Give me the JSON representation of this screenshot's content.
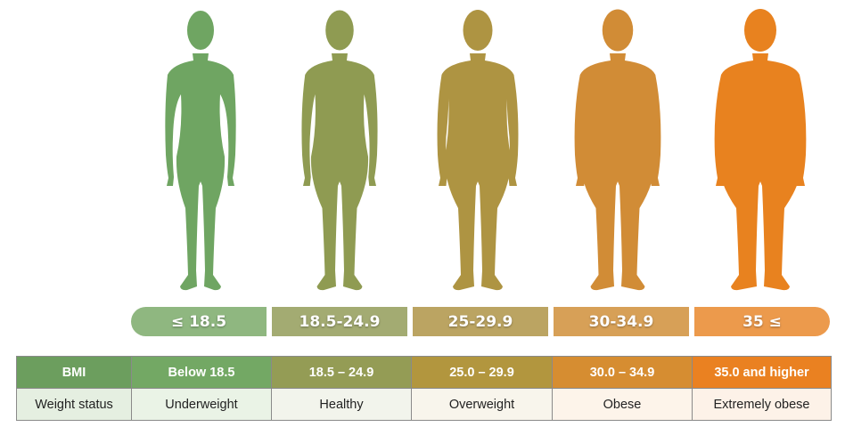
{
  "categories": [
    {
      "range_label": "≤ 18.5",
      "bmi": "Below 18.5",
      "status": "Underweight",
      "figure_color": "#6fa562",
      "pill_color": "#8fb780",
      "head_color": "#73a864",
      "status_bg": "#eaf3e6",
      "figure_build": 0.0
    },
    {
      "range_label": "18.5-24.9",
      "bmi": "18.5 – 24.9",
      "status": "Healthy",
      "figure_color": "#8f9b52",
      "pill_color": "#a3ab72",
      "head_color": "#949c55",
      "status_bg": "#f2f4ec",
      "figure_build": 0.25
    },
    {
      "range_label": "25-29.9",
      "bmi": "25.0 – 29.9",
      "status": "Overweight",
      "figure_color": "#ae9442",
      "pill_color": "#bba462",
      "head_color": "#b2963e",
      "status_bg": "#f8f5ec",
      "figure_build": 0.5
    },
    {
      "range_label": "30-34.9",
      "bmi": "30.0 – 34.9",
      "status": "Obese",
      "figure_color": "#d18c36",
      "pill_color": "#d7a057",
      "head_color": "#d68d31",
      "status_bg": "#fdf4ea",
      "figure_build": 0.75
    },
    {
      "range_label": "35 ≤",
      "bmi": "35.0 and higher",
      "status": "Extremely obese",
      "figure_color": "#e8821f",
      "pill_color": "#ec9a4c",
      "head_color": "#ea8121",
      "status_bg": "#fdf2e8",
      "figure_build": 1.0
    }
  ],
  "table": {
    "row1_label": "BMI",
    "row2_label": "Weight status",
    "row1_label_bg": "#6c9e5e",
    "row2_label_bg": "#e5efe1"
  }
}
